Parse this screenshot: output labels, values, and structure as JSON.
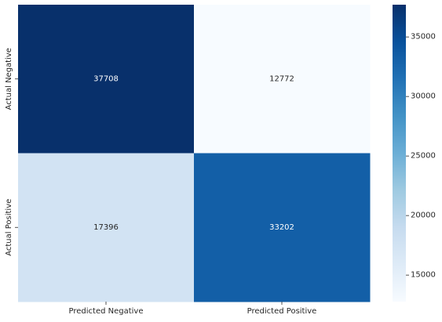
{
  "chart_data": {
    "type": "heatmap",
    "title": "",
    "xlabel": "",
    "ylabel": "",
    "x_categories": [
      "Predicted Negative",
      "Predicted Positive"
    ],
    "y_categories": [
      "Actual Negative",
      "Actual Positive"
    ],
    "values": [
      [
        37708,
        12772
      ],
      [
        17396,
        33202
      ]
    ],
    "annotations": [
      [
        "37708",
        "12772"
      ],
      [
        "17396",
        "33202"
      ]
    ],
    "colormap": "Blues",
    "colorbar": {
      "range": [
        12772,
        37708
      ],
      "ticks": [
        15000,
        20000,
        25000,
        30000,
        35000
      ],
      "tick_labels": [
        "15000",
        "20000",
        "25000",
        "30000",
        "35000"
      ]
    },
    "colors": {
      "low": "#f7fbff",
      "high": "#08306b",
      "light_text": "#ffffff",
      "dark_text": "#262626"
    },
    "grid": false
  }
}
